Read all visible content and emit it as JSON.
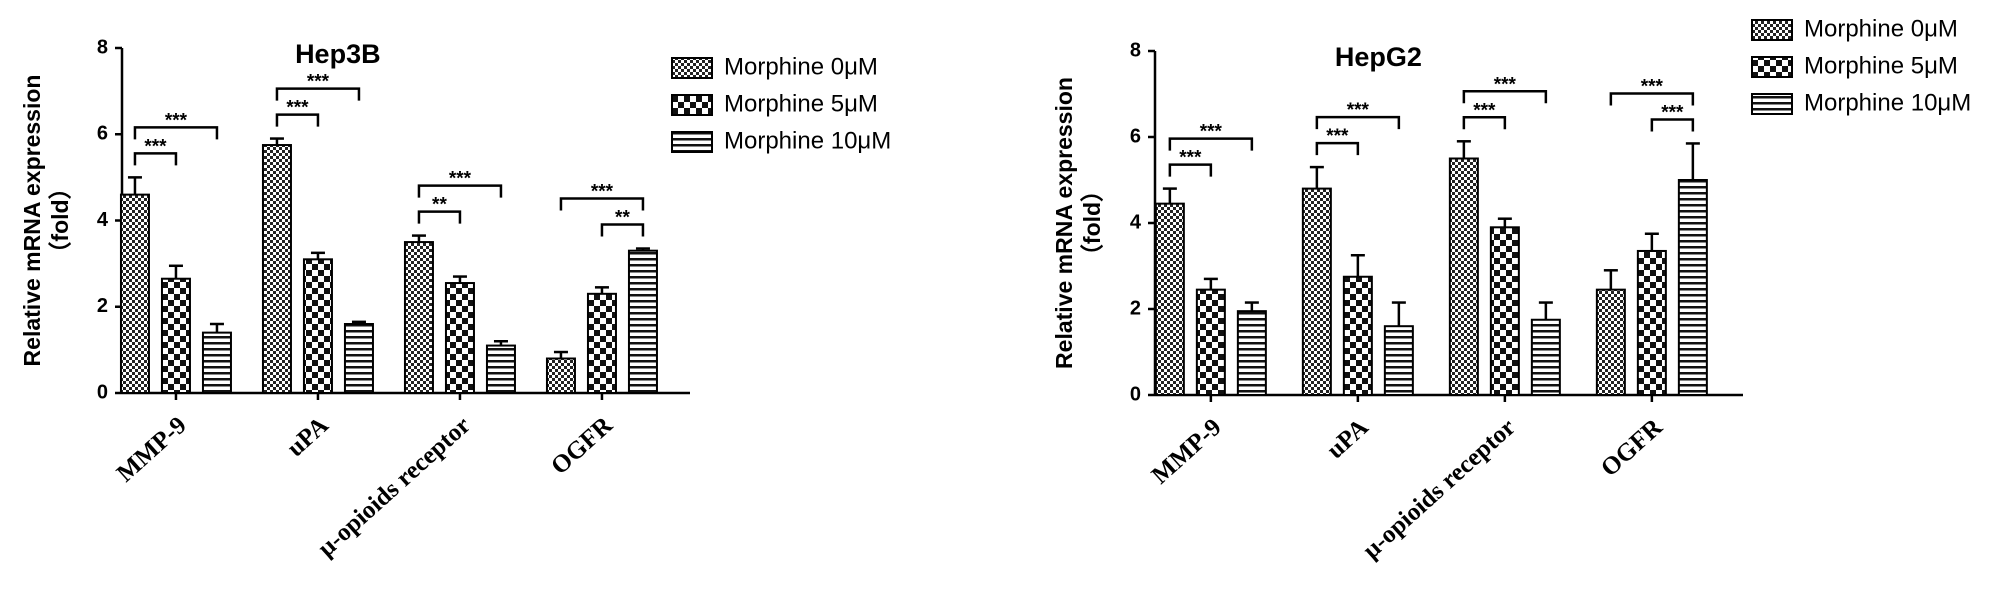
{
  "chart_data": [
    {
      "type": "bar",
      "title": "Hep3B",
      "ylabel": "Relative mRNA expression",
      "ylabel_unit": "（fold）",
      "categories": [
        "MMP-9",
        "uPA",
        "μ-opioids receptor",
        "OGFR"
      ],
      "series": [
        {
          "name": "Morphine 0μM",
          "values": [
            4.6,
            5.75,
            3.5,
            0.8
          ],
          "errors": [
            0.4,
            0.15,
            0.15,
            0.15
          ]
        },
        {
          "name": "Morphine 5μM",
          "values": [
            2.65,
            3.1,
            2.55,
            2.3
          ],
          "errors": [
            0.3,
            0.15,
            0.15,
            0.15
          ]
        },
        {
          "name": "Morphine 10μM",
          "values": [
            1.4,
            1.6,
            1.1,
            3.3
          ],
          "errors": [
            0.2,
            0.05,
            0.1,
            0.05
          ]
        }
      ],
      "annotations": [
        {
          "text": "***",
          "category": 0,
          "pair": [
            0,
            1
          ]
        },
        {
          "text": "***",
          "category": 0,
          "pair": [
            0,
            2
          ]
        },
        {
          "text": "***",
          "category": 1,
          "pair": [
            0,
            1
          ]
        },
        {
          "text": "***",
          "category": 1,
          "pair": [
            0,
            2
          ]
        },
        {
          "text": "**",
          "category": 2,
          "pair": [
            0,
            1
          ]
        },
        {
          "text": "***",
          "category": 2,
          "pair": [
            0,
            2
          ]
        },
        {
          "text": "**",
          "category": 3,
          "pair": [
            1,
            2
          ]
        },
        {
          "text": "***",
          "category": 3,
          "pair": [
            0,
            2
          ]
        }
      ],
      "ylim": [
        0,
        8
      ],
      "yticks": [
        0,
        2,
        4,
        6,
        8
      ]
    },
    {
      "type": "bar",
      "title": "HepG2",
      "ylabel": "Relative mRNA expression",
      "ylabel_unit": "（fold）",
      "categories": [
        "MMP-9",
        "uPA",
        "μ-opioids receptor",
        "OGFR"
      ],
      "series": [
        {
          "name": "Morphine 0μM",
          "values": [
            4.45,
            4.8,
            5.5,
            2.45
          ],
          "errors": [
            0.35,
            0.5,
            0.4,
            0.45
          ]
        },
        {
          "name": "Morphine 5μM",
          "values": [
            2.45,
            2.75,
            3.9,
            3.35
          ],
          "errors": [
            0.25,
            0.5,
            0.2,
            0.4
          ]
        },
        {
          "name": "Morphine 10μM",
          "values": [
            1.95,
            1.6,
            1.75,
            5.0
          ],
          "errors": [
            0.2,
            0.55,
            0.4,
            0.85
          ]
        }
      ],
      "annotations": [
        {
          "text": "***",
          "category": 0,
          "pair": [
            0,
            1
          ]
        },
        {
          "text": "***",
          "category": 0,
          "pair": [
            0,
            2
          ]
        },
        {
          "text": "***",
          "category": 1,
          "pair": [
            0,
            1
          ]
        },
        {
          "text": "***",
          "category": 1,
          "pair": [
            0,
            2
          ]
        },
        {
          "text": "***",
          "category": 2,
          "pair": [
            0,
            1
          ]
        },
        {
          "text": "***",
          "category": 2,
          "pair": [
            0,
            2
          ]
        },
        {
          "text": "***",
          "category": 3,
          "pair": [
            1,
            2
          ]
        },
        {
          "text": "***",
          "category": 3,
          "pair": [
            0,
            2
          ]
        }
      ],
      "ylim": [
        0,
        8
      ],
      "yticks": [
        0,
        2,
        4,
        6,
        8
      ]
    }
  ]
}
